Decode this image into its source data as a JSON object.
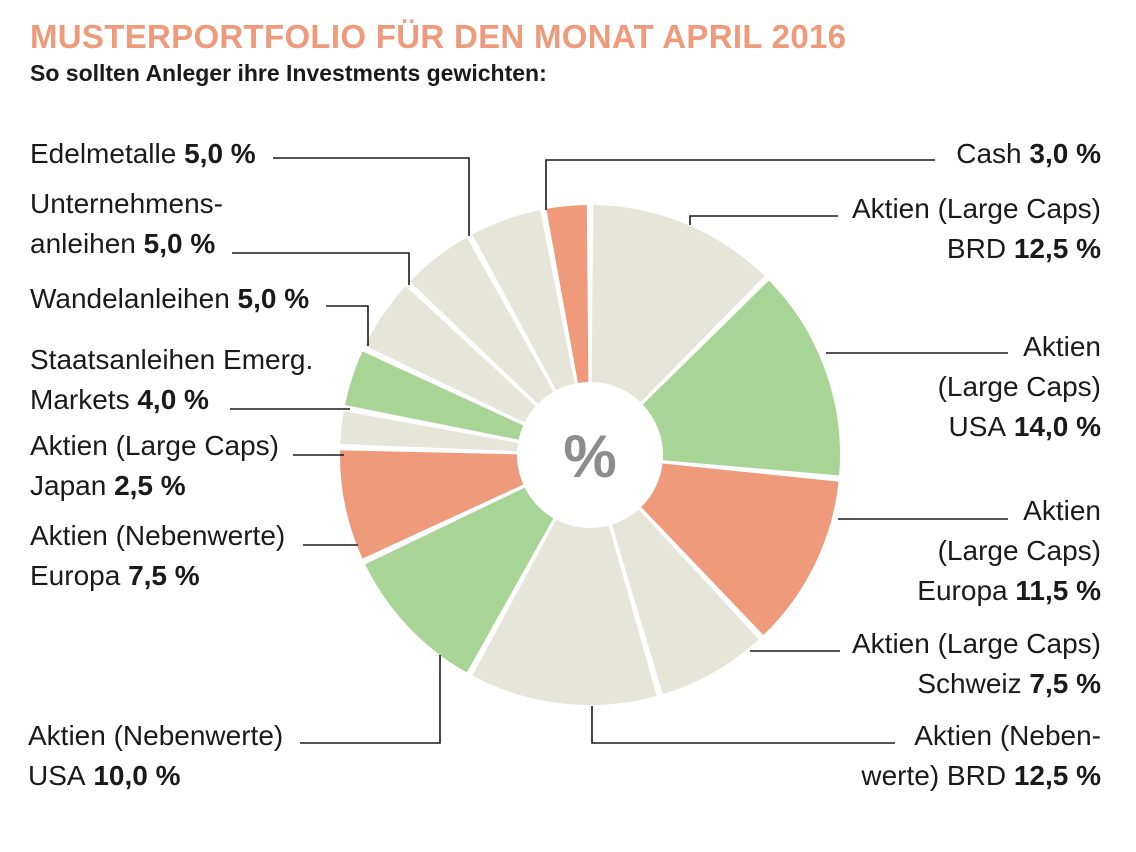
{
  "header": {
    "title": "MUSTERPORTFOLIO FÜR DEN MONAT APRIL 2016",
    "subtitle": "So sollten Anleger ihre Investments gewichten:"
  },
  "colors": {
    "title": "#ef9b7b",
    "beige": "#e6e5da",
    "green": "#a8d496",
    "salmon": "#ef9b7b",
    "center_text": "#8c8c8c"
  },
  "chart_data": {
    "type": "pie",
    "center_label": "%",
    "unit": "%",
    "slices": [
      {
        "label_lines": [
          "Aktien (Large Caps)",
          "BRD"
        ],
        "value": 12.5,
        "value_text": "12,5 %",
        "color": "beige"
      },
      {
        "label_lines": [
          "Aktien",
          "(Large Caps)",
          "USA"
        ],
        "value": 14.0,
        "value_text": "14,0 %",
        "color": "green"
      },
      {
        "label_lines": [
          "Aktien",
          "(Large Caps)",
          "Europa"
        ],
        "value": 11.5,
        "value_text": "11,5 %",
        "color": "salmon"
      },
      {
        "label_lines": [
          "Aktien (Large Caps)",
          "Schweiz"
        ],
        "value": 7.5,
        "value_text": "7,5 %",
        "color": "beige"
      },
      {
        "label_lines": [
          "Aktien (Neben-",
          "werte) BRD"
        ],
        "value": 12.5,
        "value_text": "12,5 %",
        "color": "beige"
      },
      {
        "label_lines": [
          "Aktien (Nebenwerte)",
          "USA"
        ],
        "value": 10.0,
        "value_text": "10,0 %",
        "color": "green"
      },
      {
        "label_lines": [
          "Aktien (Nebenwerte)",
          "Europa"
        ],
        "value": 7.5,
        "value_text": "7,5 %",
        "color": "salmon"
      },
      {
        "label_lines": [
          "Aktien (Large Caps)",
          "Japan"
        ],
        "value": 2.5,
        "value_text": "2,5 %",
        "color": "beige"
      },
      {
        "label_lines": [
          "Staatsanleihen Emerg.",
          "Markets"
        ],
        "value": 4.0,
        "value_text": "4,0 %",
        "color": "green"
      },
      {
        "label_lines": [
          "Wandelanleihen"
        ],
        "value": 5.0,
        "value_text": "5,0 %",
        "color": "beige"
      },
      {
        "label_lines": [
          "Unternehmens-",
          "anleihen"
        ],
        "value": 5.0,
        "value_text": "5,0 %",
        "color": "beige"
      },
      {
        "label_lines": [
          "Edelmetalle"
        ],
        "value": 5.0,
        "value_text": "5,0 %",
        "color": "beige"
      },
      {
        "label_lines": [
          "Cash"
        ],
        "value": 3.0,
        "value_text": "3,0 %",
        "color": "salmon"
      }
    ]
  }
}
